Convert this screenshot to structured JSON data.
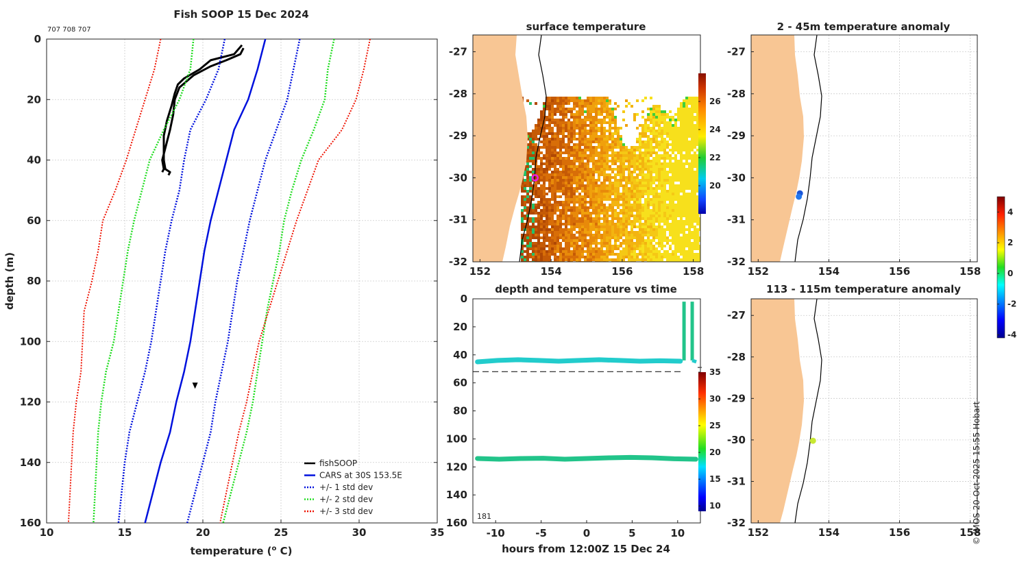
{
  "footer": "© IMOS 20-Oct-2025 15:55 Hobart",
  "profile_id": "707 708 707",
  "panel_id": "181",
  "colors": {
    "land": "#f8c694",
    "black": "#000000",
    "blue": "#0011dd",
    "green": "#22dd22",
    "red": "#ee1100",
    "cyan": "#22cccc",
    "seagreen": "#22c48a",
    "anom_blue": "#1a55d8",
    "anom_yellow": "#c8e832"
  },
  "chart_data": [
    {
      "id": "profile",
      "type": "line",
      "title": "Fish SOOP 15 Dec 2024",
      "xlabel": "temperature (",
      "xlabel_sup": "o",
      "xlabel_end": " C)",
      "ylabel": "depth (m)",
      "xlim": [
        10,
        35
      ],
      "ylim": [
        0,
        160
      ],
      "xticks": [
        "10",
        "15",
        "20",
        "25",
        "30",
        "35"
      ],
      "yticks": [
        "0",
        "20",
        "40",
        "60",
        "80",
        "100",
        "120",
        "140",
        "160"
      ],
      "legend": [
        "fishSOOP",
        "CARS at 30S 153.5E",
        "+/- 1 std dev",
        "+/- 2 std dev",
        "+/- 3 std dev"
      ],
      "series": [
        {
          "name": "fishSOOP down",
          "depth": [
            2,
            5,
            7,
            10,
            13,
            15,
            18,
            22,
            27,
            32,
            36,
            40,
            43,
            44,
            45
          ],
          "temp": [
            22.5,
            22,
            20.5,
            19.8,
            18.8,
            18.4,
            18.2,
            18.0,
            17.7,
            17.5,
            17.5,
            17.5,
            17.6,
            17.9,
            17.8
          ]
        },
        {
          "name": "fishSOOP up",
          "depth": [
            44,
            43,
            40,
            36,
            30,
            25,
            20,
            16,
            12,
            9,
            7,
            5,
            3
          ],
          "temp": [
            17.4,
            17.5,
            17.4,
            17.6,
            17.9,
            18.1,
            18.2,
            18.5,
            19.4,
            20.5,
            21.5,
            22.4,
            22.6
          ]
        },
        {
          "name": "CARS at 30S 153.5E",
          "depth": [
            0,
            10,
            20,
            30,
            40,
            50,
            60,
            70,
            80,
            90,
            100,
            110,
            120,
            130,
            140,
            150,
            160
          ],
          "temp": [
            24.0,
            23.5,
            22.9,
            22.0,
            21.5,
            21.0,
            20.5,
            20.1,
            19.8,
            19.5,
            19.2,
            18.8,
            18.3,
            17.9,
            17.3,
            16.8,
            16.3
          ]
        },
        {
          "name": "+1 std",
          "depth": [
            0,
            10,
            20,
            30,
            40,
            50,
            60,
            70,
            80,
            90,
            100,
            110,
            120,
            130,
            140,
            150,
            160
          ],
          "temp": [
            26.2,
            25.8,
            25.4,
            24.7,
            24.0,
            23.5,
            23.0,
            22.6,
            22.2,
            21.9,
            21.6,
            21.2,
            20.8,
            20.5,
            20.0,
            19.5,
            19.0
          ]
        },
        {
          "name": "-1 std",
          "depth": [
            0,
            10,
            20,
            30,
            40,
            50,
            60,
            70,
            80,
            90,
            100,
            110,
            120,
            130,
            140,
            150,
            160
          ],
          "temp": [
            21.4,
            21.0,
            20.2,
            19.2,
            18.8,
            18.5,
            18.0,
            17.6,
            17.3,
            17.0,
            16.7,
            16.3,
            15.8,
            15.3,
            15.0,
            14.8,
            14.6
          ]
        },
        {
          "name": "+2 std",
          "depth": [
            0,
            10,
            20,
            30,
            40,
            50,
            60,
            70,
            80,
            90,
            100,
            110,
            120,
            130,
            140,
            150,
            160
          ],
          "temp": [
            28.4,
            28.0,
            27.8,
            27.1,
            26.3,
            25.7,
            25.2,
            24.9,
            24.5,
            24.1,
            23.8,
            23.5,
            23.2,
            22.8,
            22.3,
            21.8,
            21.3
          ]
        },
        {
          "name": "-2 std",
          "depth": [
            0,
            10,
            20,
            30,
            40,
            50,
            60,
            70,
            80,
            90,
            100,
            110,
            120,
            130,
            140,
            150,
            160
          ],
          "temp": [
            19.4,
            19.2,
            18.5,
            17.5,
            16.6,
            16.1,
            15.6,
            15.2,
            14.9,
            14.6,
            14.3,
            13.8,
            13.5,
            13.3,
            13.2,
            13.1,
            13.0
          ]
        },
        {
          "name": "+3 std",
          "depth": [
            0,
            10,
            20,
            30,
            40,
            50,
            60,
            70,
            80,
            90,
            100,
            110,
            120,
            130,
            140,
            150,
            160
          ],
          "temp": [
            30.7,
            30.3,
            29.8,
            28.9,
            27.4,
            26.7,
            26.0,
            25.4,
            24.8,
            24.2,
            23.6,
            23.2,
            22.8,
            22.3,
            21.9,
            21.5,
            21.1
          ]
        },
        {
          "name": "-3 std",
          "depth": [
            0,
            10,
            20,
            30,
            40,
            50,
            60,
            70,
            80,
            90,
            100,
            110,
            120,
            130,
            140,
            150,
            160
          ],
          "temp": [
            17.3,
            16.9,
            16.3,
            15.7,
            15.1,
            14.4,
            13.6,
            13.3,
            12.9,
            12.4,
            12.3,
            12.2,
            11.9,
            11.7,
            11.6,
            11.5,
            11.4
          ]
        }
      ],
      "markers": [
        {
          "temp": 19.5,
          "depth": 114.5,
          "shape": "triangle"
        }
      ]
    },
    {
      "id": "surface",
      "type": "heatmap",
      "title": "surface temperature",
      "xlim": [
        151.8,
        158.2
      ],
      "ylim": [
        -32,
        -26.6
      ],
      "xticks": [
        "152",
        "154",
        "156",
        "158"
      ],
      "yticks": [
        "-27",
        "-28",
        "-29",
        "-30",
        "-31",
        "-32"
      ],
      "colorbar": {
        "min": 18,
        "max": 28,
        "ticks": [
          "20",
          "22",
          "24",
          "26"
        ]
      },
      "marker": {
        "lon": 153.55,
        "lat": -30.0,
        "color": "#e81ce8"
      }
    },
    {
      "id": "timeseries",
      "type": "scatter",
      "title": "depth and temperature vs time",
      "xlabel": "hours from 12:00Z 15 Dec 24",
      "xlim": [
        -12.5,
        12.5
      ],
      "ylim": [
        0,
        160
      ],
      "xticks": [
        "-10",
        "-5",
        "0",
        "5",
        "10"
      ],
      "yticks": [
        "0",
        "20",
        "40",
        "60",
        "80",
        "100",
        "120",
        "140",
        "160"
      ],
      "colorbar": {
        "min": 9,
        "max": 35,
        "ticks": [
          "10",
          "15",
          "20",
          "25",
          "30",
          "35"
        ]
      },
      "reference_depth": 52,
      "series": [
        {
          "name": "shallow",
          "t_start": -12,
          "t_end": 10.3,
          "depth": [
            45,
            44,
            43.5,
            44,
            44.5,
            44,
            43.5,
            44,
            44.5,
            44.2,
            44.5
          ],
          "color": "#22cccc"
        },
        {
          "name": "deep",
          "t_start": -12,
          "t_end": 12,
          "depth": [
            114,
            114.5,
            114,
            113.8,
            114.5,
            114,
            113.5,
            113.2,
            113.5,
            114.2,
            114.5
          ],
          "color": "#22c48a"
        }
      ]
    },
    {
      "id": "anom_upper",
      "type": "scatter",
      "title": "2 - 45m temperature anomaly",
      "xlim": [
        151.8,
        158.2
      ],
      "ylim": [
        -32,
        -26.6
      ],
      "xticks": [
        "152",
        "154",
        "156",
        "158"
      ],
      "yticks": [
        "-27",
        "-28",
        "-29",
        "-30",
        "-31",
        "-32"
      ],
      "points": [
        {
          "lon": 153.18,
          "lat": -30.37,
          "color": "#1a55d8"
        },
        {
          "lon": 153.15,
          "lat": -30.45,
          "color": "#2277ee"
        }
      ]
    },
    {
      "id": "anom_lower",
      "type": "scatter",
      "title": "113 - 115m temperature anomaly",
      "xlim": [
        151.8,
        158.2
      ],
      "ylim": [
        -32,
        -26.6
      ],
      "xticks": [
        "152",
        "154",
        "156",
        "158"
      ],
      "yticks": [
        "-27",
        "-28",
        "-29",
        "-30",
        "-31",
        "-32"
      ],
      "points": [
        {
          "lon": 153.55,
          "lat": -30.02,
          "color": "#c8e832"
        }
      ]
    },
    {
      "id": "anom_colorbar",
      "type": "heatmap",
      "colorbar": {
        "min": -4.2,
        "max": 5,
        "ticks": [
          "4",
          "2",
          "0",
          "-2",
          "-4"
        ]
      }
    }
  ]
}
